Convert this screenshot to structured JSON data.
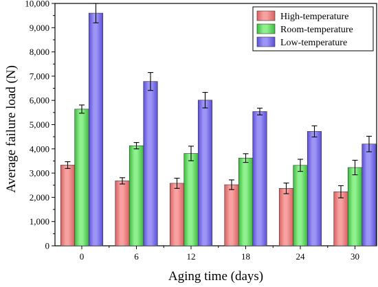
{
  "chart_data": {
    "type": "bar",
    "title": "",
    "xlabel": "Aging time (days)",
    "ylabel": "Average failure load (N)",
    "categories": [
      "0",
      "6",
      "12",
      "18",
      "24",
      "30"
    ],
    "ylim": [
      0,
      10000
    ],
    "yticks": [
      0,
      1000,
      2000,
      3000,
      4000,
      5000,
      6000,
      7000,
      8000,
      9000,
      10000
    ],
    "ytick_labels": [
      "0",
      "1,000",
      "2,000",
      "3,000",
      "4,000",
      "5,000",
      "6,000",
      "7,000",
      "8,000",
      "9,000",
      "10,000"
    ],
    "legend_position": "top-right",
    "grid": false,
    "series": [
      {
        "name": "High-temperature",
        "color": "#f7a1a1",
        "gradient_dark": "#d86060",
        "values": [
          3330,
          2680,
          2580,
          2520,
          2370,
          2230
        ],
        "errors": [
          140,
          130,
          210,
          200,
          220,
          250
        ]
      },
      {
        "name": "Room-temperature",
        "color": "#8ff08f",
        "gradient_dark": "#3dbb3d",
        "values": [
          5640,
          4130,
          3810,
          3620,
          3320,
          3230
        ],
        "errors": [
          170,
          130,
          300,
          180,
          250,
          300
        ]
      },
      {
        "name": "Low-temperature",
        "color": "#9d95f5",
        "gradient_dark": "#5a4fd8",
        "values": [
          9600,
          6780,
          6010,
          5540,
          4720,
          4200
        ],
        "errors": [
          400,
          370,
          320,
          140,
          230,
          320
        ]
      }
    ]
  }
}
